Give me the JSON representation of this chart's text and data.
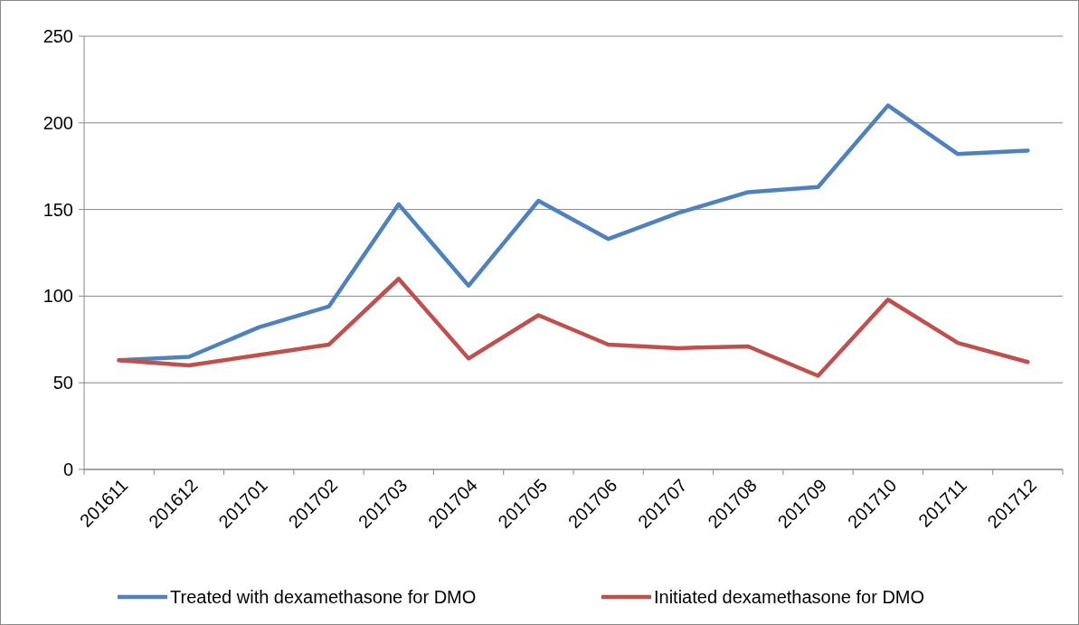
{
  "chart_data": {
    "type": "line",
    "categories": [
      "201611",
      "201612",
      "201701",
      "201702",
      "201703",
      "201704",
      "201705",
      "201706",
      "201707",
      "201708",
      "201709",
      "201710",
      "201711",
      "201712"
    ],
    "series": [
      {
        "name": "Treated with dexamethasone for DMO",
        "color": "#4f81bd",
        "values": [
          63,
          65,
          82,
          94,
          153,
          106,
          155,
          133,
          148,
          160,
          163,
          210,
          182,
          184
        ]
      },
      {
        "name": "Initiated dexamethasone for DMO",
        "color": "#c0504d",
        "values": [
          63,
          60,
          66,
          72,
          110,
          64,
          89,
          72,
          70,
          71,
          54,
          98,
          73,
          62
        ]
      }
    ],
    "ylim": [
      0,
      250
    ],
    "yticks": [
      0,
      50,
      100,
      150,
      200,
      250
    ],
    "grid": "y",
    "legend": "bottom",
    "marker": "none",
    "line_style": "solid"
  }
}
